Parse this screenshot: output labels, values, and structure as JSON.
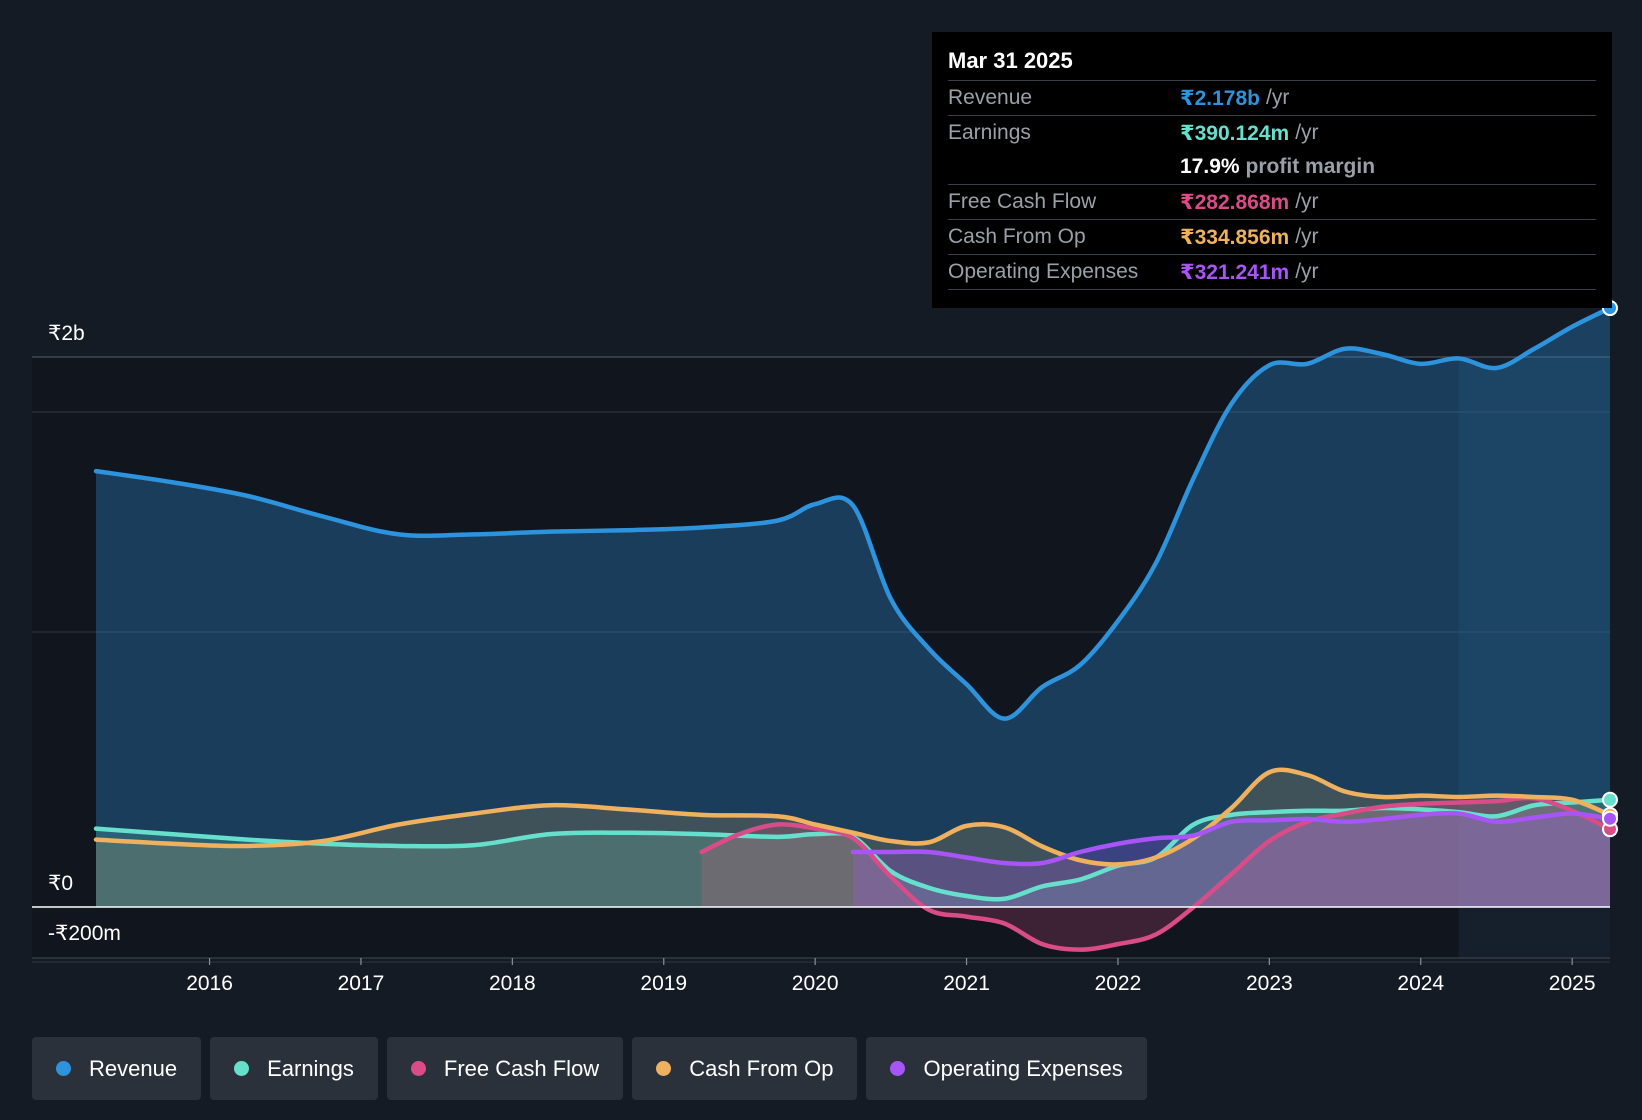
{
  "tooltip": {
    "date": "Mar 31 2025",
    "rows": [
      {
        "label": "Revenue",
        "value": "₹2.178b",
        "unit": "/yr",
        "color": "#2d93dd"
      },
      {
        "label": "Earnings",
        "value": "₹390.124m",
        "unit": "/yr",
        "color": "#66e0cd"
      },
      {
        "label": "",
        "value": "17.9%",
        "unit": "profit margin",
        "color": "#ffffff"
      },
      {
        "label": "Free Cash Flow",
        "value": "₹282.868m",
        "unit": "/yr",
        "color": "#d94c87"
      },
      {
        "label": "Cash From Op",
        "value": "₹334.856m",
        "unit": "/yr",
        "color": "#f0b15e"
      },
      {
        "label": "Operating Expenses",
        "value": "₹321.241m",
        "unit": "/yr",
        "color": "#a855f7"
      }
    ]
  },
  "legend": [
    {
      "label": "Revenue",
      "color": "#2d93dd"
    },
    {
      "label": "Earnings",
      "color": "#66e0cd"
    },
    {
      "label": "Free Cash Flow",
      "color": "#d94c87"
    },
    {
      "label": "Cash From Op",
      "color": "#f0b15e"
    },
    {
      "label": "Operating Expenses",
      "color": "#a855f7"
    }
  ],
  "chart_data": {
    "type": "area",
    "currency": "₹",
    "y_tick_labels": {
      "top": "₹2b",
      "zero": "₹0",
      "bottom": "-₹200m"
    },
    "ylim": [
      -200,
      2200
    ],
    "xlim": [
      2015.25,
      2025.25
    ],
    "x_ticks": [
      "2016",
      "2017",
      "2018",
      "2019",
      "2020",
      "2021",
      "2022",
      "2023",
      "2024",
      "2025"
    ],
    "x_tick_values": [
      2016,
      2017,
      2018,
      2019,
      2020,
      2021,
      2022,
      2023,
      2024,
      2025
    ],
    "y_unit": "₹m",
    "forecast_band_start": 2024.25,
    "series": [
      {
        "name": "Revenue",
        "color": "#2d93dd",
        "x": [
          2015.25,
          2015.75,
          2016.25,
          2016.75,
          2017.25,
          2017.75,
          2018.25,
          2018.75,
          2019.25,
          2019.75,
          2020.0,
          2020.25,
          2020.5,
          2020.75,
          2021.0,
          2021.25,
          2021.5,
          2021.75,
          2022.0,
          2022.25,
          2022.5,
          2022.75,
          2023.0,
          2023.25,
          2023.5,
          2023.75,
          2024.0,
          2024.25,
          2024.5,
          2024.75,
          2025.0,
          2025.25
        ],
        "values": [
          1585,
          1545,
          1495,
          1420,
          1355,
          1355,
          1365,
          1370,
          1380,
          1405,
          1465,
          1460,
          1120,
          940,
          810,
          685,
          800,
          880,
          1040,
          1250,
          1560,
          1830,
          1970,
          1975,
          2030,
          2010,
          1975,
          1995,
          1960,
          2030,
          2110,
          2178
        ]
      },
      {
        "name": "Earnings",
        "color": "#66e0cd",
        "x": [
          2015.25,
          2015.75,
          2016.25,
          2016.75,
          2017.25,
          2017.75,
          2018.25,
          2018.75,
          2019.25,
          2019.75,
          2020.0,
          2020.25,
          2020.5,
          2020.75,
          2021.0,
          2021.25,
          2021.5,
          2021.75,
          2022.0,
          2022.25,
          2022.5,
          2022.75,
          2023.0,
          2023.25,
          2023.5,
          2023.75,
          2024.0,
          2024.25,
          2024.5,
          2024.75,
          2025.0,
          2025.25
        ],
        "values": [
          285,
          265,
          245,
          230,
          222,
          225,
          265,
          270,
          265,
          255,
          265,
          255,
          130,
          70,
          40,
          30,
          75,
          100,
          150,
          180,
          300,
          335,
          345,
          350,
          350,
          360,
          355,
          345,
          330,
          370,
          380,
          390
        ]
      },
      {
        "name": "Free Cash Flow",
        "color": "#d94c87",
        "x": [
          2019.25,
          2019.5,
          2019.75,
          2020.0,
          2020.25,
          2020.5,
          2020.75,
          2021.0,
          2021.25,
          2021.5,
          2021.75,
          2022.0,
          2022.25,
          2022.5,
          2022.75,
          2023.0,
          2023.25,
          2023.5,
          2023.75,
          2024.0,
          2024.25,
          2024.5,
          2024.75,
          2025.0,
          2025.25
        ],
        "values": [
          200,
          265,
          300,
          285,
          250,
          110,
          -10,
          -35,
          -60,
          -135,
          -155,
          -135,
          -100,
          0,
          120,
          240,
          310,
          340,
          365,
          375,
          380,
          385,
          395,
          350,
          283
        ]
      },
      {
        "name": "Cash From Op",
        "color": "#f0b15e",
        "x": [
          2015.25,
          2015.75,
          2016.25,
          2016.75,
          2017.25,
          2017.75,
          2018.25,
          2018.75,
          2019.25,
          2019.75,
          2020.0,
          2020.25,
          2020.5,
          2020.75,
          2021.0,
          2021.25,
          2021.5,
          2021.75,
          2022.0,
          2022.25,
          2022.5,
          2022.75,
          2023.0,
          2023.25,
          2023.5,
          2023.75,
          2024.0,
          2024.25,
          2024.5,
          2024.75,
          2025.0,
          2025.25
        ],
        "values": [
          245,
          230,
          222,
          240,
          300,
          340,
          370,
          355,
          335,
          330,
          300,
          270,
          240,
          235,
          295,
          290,
          220,
          170,
          155,
          180,
          250,
          360,
          490,
          480,
          420,
          400,
          405,
          400,
          405,
          400,
          390,
          335
        ]
      },
      {
        "name": "Operating Expenses",
        "color": "#a855f7",
        "x": [
          2020.25,
          2020.5,
          2020.75,
          2021.0,
          2021.25,
          2021.5,
          2021.75,
          2022.0,
          2022.25,
          2022.5,
          2022.75,
          2023.0,
          2023.25,
          2023.5,
          2023.75,
          2024.0,
          2024.25,
          2024.5,
          2024.75,
          2025.0,
          2025.25
        ],
        "values": [
          200,
          200,
          200,
          180,
          160,
          160,
          200,
          230,
          250,
          260,
          310,
          315,
          320,
          310,
          320,
          335,
          340,
          310,
          325,
          340,
          321
        ]
      }
    ]
  }
}
